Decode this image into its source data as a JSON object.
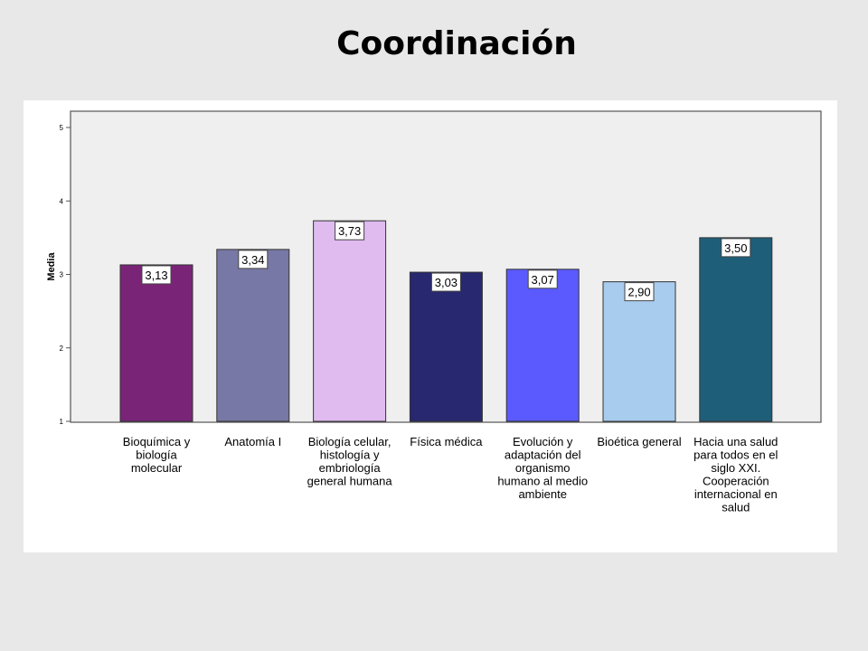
{
  "slide": {
    "title": "Coordinación"
  },
  "chart_data": {
    "type": "bar",
    "title": "Coordinación",
    "xlabel": "",
    "ylabel": "Media",
    "ylim": [
      1,
      5
    ],
    "yticks": [
      "1",
      "2",
      "3",
      "4",
      "5"
    ],
    "categories": [
      [
        "Bioquímica y",
        "biología",
        "molecular"
      ],
      [
        "Anatomía I"
      ],
      [
        "Biología celular,",
        "histología y",
        "embriología",
        "general humana"
      ],
      [
        "Física médica"
      ],
      [
        "Evolución y",
        "adaptación del",
        "organismo",
        "humano al medio",
        "ambiente"
      ],
      [
        "Bioética general"
      ],
      [
        "Hacia una salud",
        "para todos en el",
        "siglo XXI.",
        "Cooperación",
        "internacional en",
        "salud"
      ]
    ],
    "values": [
      3.13,
      3.34,
      3.73,
      3.03,
      3.07,
      2.9,
      3.5
    ],
    "value_labels": [
      "3,13",
      "3,34",
      "3,73",
      "3,03",
      "3,07",
      "2,90",
      "3,50"
    ],
    "colors": [
      "#7a2478",
      "#7878a6",
      "#dfbbf0",
      "#282870",
      "#5a5aff",
      "#a8ccee",
      "#1f5e78"
    ],
    "plot_background": "#efefef",
    "grid": false,
    "legend": "none"
  }
}
